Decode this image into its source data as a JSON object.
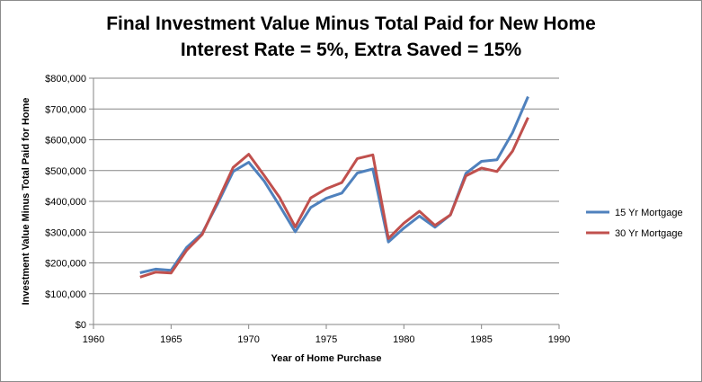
{
  "chart_data": {
    "type": "line",
    "title_line1": "Final Investment Value Minus Total Paid for New Home",
    "title_line2": "Interest Rate = 5%, Extra Saved = 15%",
    "xlabel": "Year of Home Purchase",
    "ylabel": "Investment Value Minus Total Paid  for Home",
    "xlim": [
      1960,
      1990
    ],
    "ylim": [
      0,
      800000
    ],
    "x_ticks": [
      1960,
      1965,
      1970,
      1975,
      1980,
      1985,
      1990
    ],
    "x_tick_labels": [
      "1960",
      "1965",
      "1970",
      "1975",
      "1980",
      "1985",
      "1990"
    ],
    "y_ticks": [
      0,
      100000,
      200000,
      300000,
      400000,
      500000,
      600000,
      700000,
      800000
    ],
    "y_tick_labels": [
      "$0",
      "$100,000",
      "$200,000",
      "$300,000",
      "$400,000",
      "$500,000",
      "$600,000",
      "$700,000",
      "$800,000"
    ],
    "grid": "horizontal",
    "legend_position": "right",
    "x": [
      1963,
      1964,
      1965,
      1966,
      1967,
      1968,
      1969,
      1970,
      1971,
      1972,
      1973,
      1974,
      1975,
      1976,
      1977,
      1978,
      1979,
      1980,
      1981,
      1982,
      1983,
      1984,
      1985,
      1986,
      1987,
      1988
    ],
    "series": [
      {
        "name": "15 Yr Mortgage",
        "color": "#4f81bd",
        "values": [
          168000,
          180000,
          176000,
          250000,
          296000,
          392000,
          497000,
          527000,
          466000,
          385000,
          301000,
          380000,
          410000,
          427000,
          492000,
          505000,
          268000,
          313000,
          352000,
          316000,
          356000,
          491000,
          530000,
          535000,
          623000,
          740000
        ]
      },
      {
        "name": "30 Yr Mortgage",
        "color": "#c0504d",
        "values": [
          154000,
          170000,
          167000,
          241000,
          292000,
          400000,
          510000,
          553000,
          484000,
          412000,
          317000,
          411000,
          441000,
          461000,
          539000,
          551000,
          279000,
          329000,
          368000,
          322000,
          356000,
          483000,
          508000,
          497000,
          563000,
          672000
        ]
      }
    ]
  }
}
